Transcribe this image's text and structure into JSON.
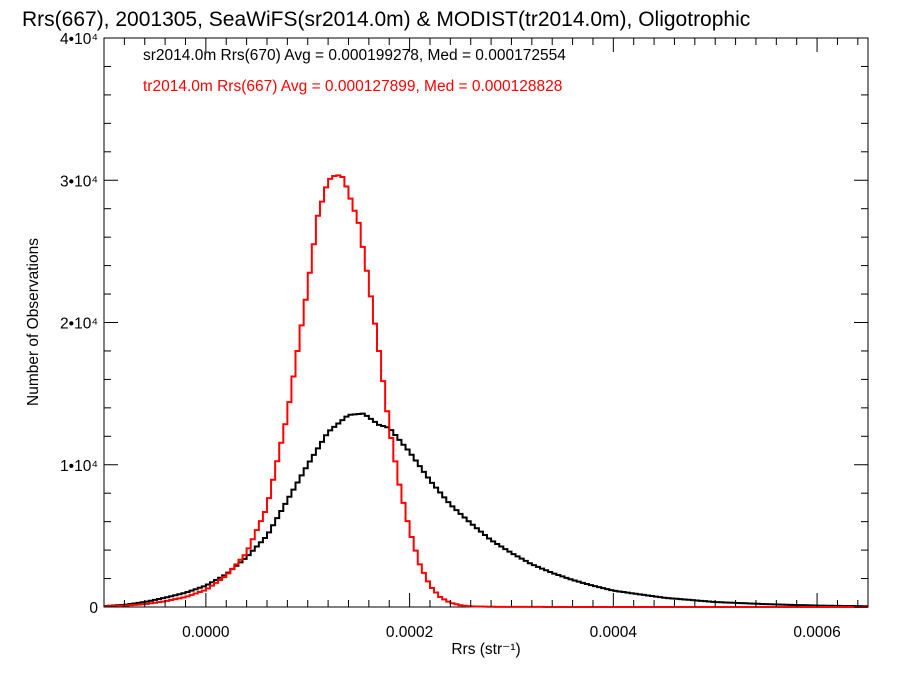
{
  "chart_data": {
    "type": "histogram",
    "title": "Rrs(667), 2001305, SeaWiFS(sr2014.0m) & MODIST(tr2014.0m), Oligotrophic",
    "xlabel": "Rrs (str⁻¹)",
    "ylabel": "Number of Observations",
    "xlim": [
      -0.0001,
      0.00065
    ],
    "ylim": [
      0,
      40000
    ],
    "x_ticks": [
      {
        "value": 0.0,
        "label": "0.0000"
      },
      {
        "value": 0.0002,
        "label": "0.0002"
      },
      {
        "value": 0.0004,
        "label": "0.0004"
      },
      {
        "value": 0.0006,
        "label": "0.0006"
      }
    ],
    "y_ticks": [
      {
        "value": 0,
        "label": "0"
      },
      {
        "value": 10000,
        "label": "1•10⁴"
      },
      {
        "value": 20000,
        "label": "2•10⁴"
      },
      {
        "value": 30000,
        "label": "3•10⁴"
      },
      {
        "value": 40000,
        "label": "4•10⁴"
      }
    ],
    "grid": false,
    "legend_position": "top-left",
    "series": [
      {
        "name": "sr2014.0m Rrs(670)",
        "legend_text": "sr2014.0m Rrs(670) Avg = 0.000199278, Med = 0.000172554",
        "color": "#000000",
        "points": [
          [
            -0.0001,
            60
          ],
          [
            -8e-05,
            150
          ],
          [
            -6e-05,
            350
          ],
          [
            -4e-05,
            650
          ],
          [
            -2e-05,
            1000
          ],
          [
            0.0,
            1500
          ],
          [
            2e-05,
            2300
          ],
          [
            4e-05,
            3500
          ],
          [
            6e-05,
            5000
          ],
          [
            8e-05,
            7500
          ],
          [
            0.0001,
            10000
          ],
          [
            0.00012,
            12300
          ],
          [
            0.00014,
            13500
          ],
          [
            0.000155,
            13600
          ],
          [
            0.00017,
            12800
          ],
          [
            0.00018,
            12600
          ],
          [
            0.0002,
            10900
          ],
          [
            0.00022,
            8900
          ],
          [
            0.00024,
            7200
          ],
          [
            0.00026,
            5900
          ],
          [
            0.00028,
            4700
          ],
          [
            0.0003,
            3800
          ],
          [
            0.00032,
            3000
          ],
          [
            0.00034,
            2400
          ],
          [
            0.00036,
            1900
          ],
          [
            0.00038,
            1500
          ],
          [
            0.0004,
            1150
          ],
          [
            0.00045,
            650
          ],
          [
            0.0005,
            350
          ],
          [
            0.00055,
            200
          ],
          [
            0.0006,
            100
          ],
          [
            0.00065,
            50
          ]
        ]
      },
      {
        "name": "tr2014.0m Rrs(667)",
        "legend_text": "tr2014.0m Rrs(667) Avg = 0.000127899, Med = 0.000128828",
        "color": "#ff0000",
        "points": [
          [
            -0.0001,
            40
          ],
          [
            -8e-05,
            100
          ],
          [
            -6e-05,
            200
          ],
          [
            -4e-05,
            400
          ],
          [
            -2e-05,
            700
          ],
          [
            0.0,
            1200
          ],
          [
            2e-05,
            2200
          ],
          [
            4e-05,
            3800
          ],
          [
            6e-05,
            7000
          ],
          [
            8e-05,
            13500
          ],
          [
            0.0001,
            22500
          ],
          [
            0.00011,
            27500
          ],
          [
            0.00012,
            30000
          ],
          [
            0.000128,
            30400
          ],
          [
            0.000135,
            30200
          ],
          [
            0.00015,
            27000
          ],
          [
            0.00016,
            22800
          ],
          [
            0.00017,
            18000
          ],
          [
            0.00018,
            12700
          ],
          [
            0.00019,
            8600
          ],
          [
            0.0002,
            5400
          ],
          [
            0.00021,
            3000
          ],
          [
            0.00022,
            1500
          ],
          [
            0.00023,
            700
          ],
          [
            0.00024,
            300
          ],
          [
            0.00025,
            120
          ],
          [
            0.00026,
            50
          ],
          [
            0.00028,
            15
          ],
          [
            0.0003,
            5
          ],
          [
            0.00065,
            0
          ]
        ]
      }
    ]
  }
}
